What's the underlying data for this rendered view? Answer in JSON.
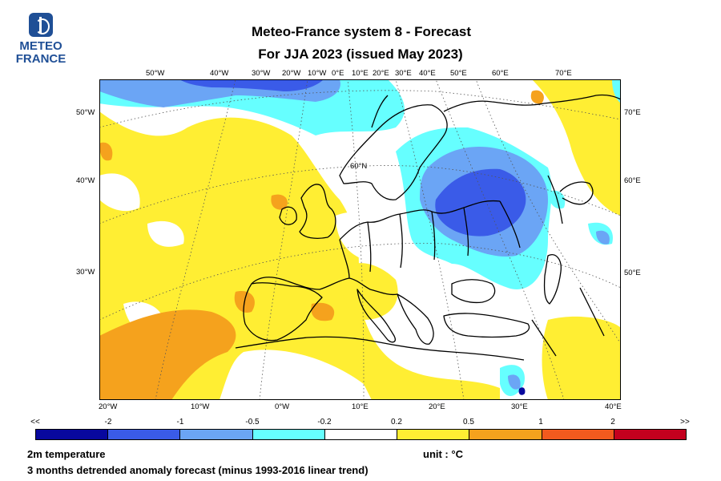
{
  "logo": {
    "line1": "METEO",
    "line2": "FRANCE"
  },
  "title": {
    "line1": "Meteo-France system 8  -  Forecast",
    "line2": "For JJA 2023      (issued May 2023)"
  },
  "map": {
    "projection": "polar-stereographic",
    "lon_labels_top": [
      "50°W",
      "40°W",
      "30°W",
      "20°W",
      "10°W",
      "0°E",
      "10°E",
      "20°E",
      "30°E",
      "40°E",
      "50°E",
      "60°E",
      "70°E"
    ],
    "lon_labels_bottom": [
      "20°W",
      "10°W",
      "0°W",
      "10°E",
      "20°E",
      "30°E",
      "40°E"
    ],
    "lat_labels_left": [
      "50°W",
      "40°W",
      "30°W"
    ],
    "lat_labels_right": [
      "70°E",
      "60°E",
      "50°E"
    ],
    "inner_lat_label": "60°N",
    "colors": {
      "ocean_coast": "#000000",
      "grid": "#555555"
    }
  },
  "colorbar": {
    "labels": [
      "<<",
      "-2",
      "-1",
      "-0.5",
      "-0.2",
      "0.2",
      "0.5",
      "1",
      "2",
      ">>"
    ],
    "colors": [
      "#08089e",
      "#3a5be8",
      "#6ba5f5",
      "#66ffff",
      "#ffffff",
      "#ffee33",
      "#f5a21d",
      "#f25a1e",
      "#c4001e"
    ]
  },
  "footer": {
    "variable": "2m temperature",
    "unit": "unit : °C",
    "description": "3 months detrended anomaly forecast (minus 1993-2016 linear trend)"
  }
}
